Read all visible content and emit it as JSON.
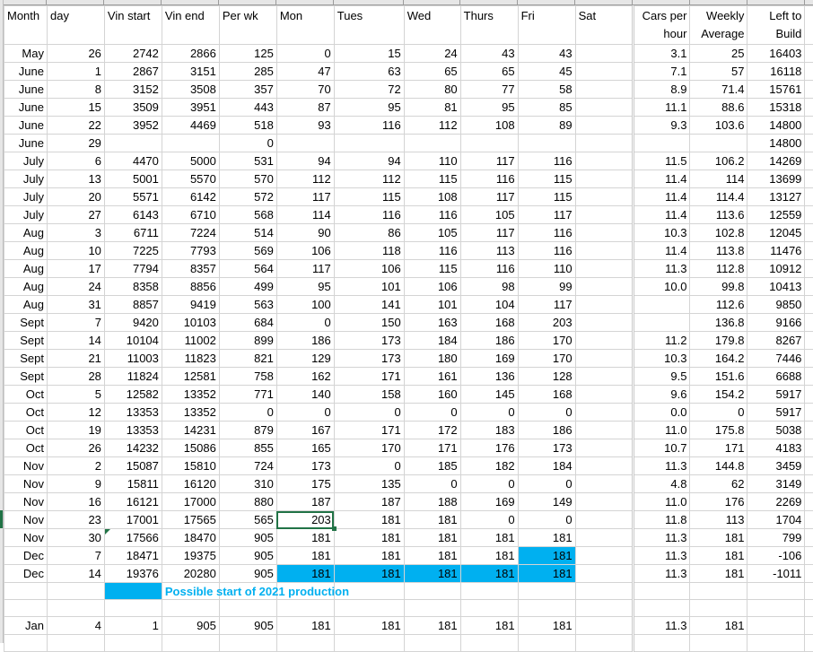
{
  "headers": [
    "Month",
    "day",
    "Vin start",
    "Vin end",
    "Per wk",
    "Mon",
    "Tues",
    "Wed",
    "Thurs",
    "Fri",
    "Sat",
    "Cars per hour",
    "Weekly Average",
    "Left to Build"
  ],
  "rows": [
    [
      "May",
      "26",
      "2742",
      "2866",
      "125",
      "0",
      "15",
      "24",
      "43",
      "43",
      "",
      "3.1",
      "25",
      "16403"
    ],
    [
      "June",
      "1",
      "2867",
      "3151",
      "285",
      "47",
      "63",
      "65",
      "65",
      "45",
      "",
      "7.1",
      "57",
      "16118"
    ],
    [
      "June",
      "8",
      "3152",
      "3508",
      "357",
      "70",
      "72",
      "80",
      "77",
      "58",
      "",
      "8.9",
      "71.4",
      "15761"
    ],
    [
      "June",
      "15",
      "3509",
      "3951",
      "443",
      "87",
      "95",
      "81",
      "95",
      "85",
      "",
      "11.1",
      "88.6",
      "15318"
    ],
    [
      "June",
      "22",
      "3952",
      "4469",
      "518",
      "93",
      "116",
      "112",
      "108",
      "89",
      "",
      "9.3",
      "103.6",
      "14800"
    ],
    [
      "June",
      "29",
      "",
      "",
      "0",
      "",
      "",
      "",
      "",
      "",
      "",
      "",
      "",
      "14800"
    ],
    [
      "July",
      "6",
      "4470",
      "5000",
      "531",
      "94",
      "94",
      "110",
      "117",
      "116",
      "",
      "11.5",
      "106.2",
      "14269"
    ],
    [
      "July",
      "13",
      "5001",
      "5570",
      "570",
      "112",
      "112",
      "115",
      "116",
      "115",
      "",
      "11.4",
      "114",
      "13699"
    ],
    [
      "July",
      "20",
      "5571",
      "6142",
      "572",
      "117",
      "115",
      "108",
      "117",
      "115",
      "",
      "11.4",
      "114.4",
      "13127"
    ],
    [
      "July",
      "27",
      "6143",
      "6710",
      "568",
      "114",
      "116",
      "116",
      "105",
      "117",
      "",
      "11.4",
      "113.6",
      "12559"
    ],
    [
      "Aug",
      "3",
      "6711",
      "7224",
      "514",
      "90",
      "86",
      "105",
      "117",
      "116",
      "",
      "10.3",
      "102.8",
      "12045"
    ],
    [
      "Aug",
      "10",
      "7225",
      "7793",
      "569",
      "106",
      "118",
      "116",
      "113",
      "116",
      "",
      "11.4",
      "113.8",
      "11476"
    ],
    [
      "Aug",
      "17",
      "7794",
      "8357",
      "564",
      "117",
      "106",
      "115",
      "116",
      "110",
      "",
      "11.3",
      "112.8",
      "10912"
    ],
    [
      "Aug",
      "24",
      "8358",
      "8856",
      "499",
      "95",
      "101",
      "106",
      "98",
      "99",
      "",
      "10.0",
      "99.8",
      "10413"
    ],
    [
      "Aug",
      "31",
      "8857",
      "9419",
      "563",
      "100",
      "141",
      "101",
      "104",
      "117",
      "",
      "",
      "112.6",
      "9850"
    ],
    [
      "Sept",
      "7",
      "9420",
      "10103",
      "684",
      "0",
      "150",
      "163",
      "168",
      "203",
      "",
      "",
      "136.8",
      "9166"
    ],
    [
      "Sept",
      "14",
      "10104",
      "11002",
      "899",
      "186",
      "173",
      "184",
      "186",
      "170",
      "",
      "11.2",
      "179.8",
      "8267"
    ],
    [
      "Sept",
      "21",
      "11003",
      "11823",
      "821",
      "129",
      "173",
      "180",
      "169",
      "170",
      "",
      "10.3",
      "164.2",
      "7446"
    ],
    [
      "Sept",
      "28",
      "11824",
      "12581",
      "758",
      "162",
      "171",
      "161",
      "136",
      "128",
      "",
      "9.5",
      "151.6",
      "6688"
    ],
    [
      "Oct",
      "5",
      "12582",
      "13352",
      "771",
      "140",
      "158",
      "160",
      "145",
      "168",
      "",
      "9.6",
      "154.2",
      "5917"
    ],
    [
      "Oct",
      "12",
      "13353",
      "13352",
      "0",
      "0",
      "0",
      "0",
      "0",
      "0",
      "",
      "0.0",
      "0",
      "5917"
    ],
    [
      "Oct",
      "19",
      "13353",
      "14231",
      "879",
      "167",
      "171",
      "172",
      "183",
      "186",
      "",
      "11.0",
      "175.8",
      "5038"
    ],
    [
      "Oct",
      "26",
      "14232",
      "15086",
      "855",
      "165",
      "170",
      "171",
      "176",
      "173",
      "",
      "10.7",
      "171",
      "4183"
    ],
    [
      "Nov",
      "2",
      "15087",
      "15810",
      "724",
      "173",
      "0",
      "185",
      "182",
      "184",
      "",
      "11.3",
      "144.8",
      "3459"
    ],
    [
      "Nov",
      "9",
      "15811",
      "16120",
      "310",
      "175",
      "135",
      "0",
      "0",
      "0",
      "",
      "4.8",
      "62",
      "3149"
    ],
    [
      "Nov",
      "16",
      "16121",
      "17000",
      "880",
      "187",
      "187",
      "188",
      "169",
      "149",
      "",
      "11.0",
      "176",
      "2269"
    ],
    [
      "Nov",
      "23",
      "17001",
      "17565",
      "565",
      "203",
      "181",
      "181",
      "0",
      "0",
      "",
      "11.8",
      "113",
      "1704"
    ],
    [
      "Nov",
      "30",
      "17566",
      "18470",
      "905",
      "181",
      "181",
      "181",
      "181",
      "181",
      "",
      "11.3",
      "181",
      "799"
    ],
    [
      "Dec",
      "7",
      "18471",
      "19375",
      "905",
      "181",
      "181",
      "181",
      "181",
      "181",
      "",
      "11.3",
      "181",
      "-106"
    ],
    [
      "Dec",
      "14",
      "19376",
      "20280",
      "905",
      "181",
      "181",
      "181",
      "181",
      "181",
      "",
      "11.3",
      "181",
      "-1011"
    ]
  ],
  "note": "Possible start of 2021 production",
  "jan_row": [
    "Jan",
    "4",
    "1",
    "905",
    "905",
    "181",
    "181",
    "181",
    "181",
    "181",
    "",
    "11.3",
    "181",
    ""
  ],
  "colors": {
    "highlight": "#00B0F0",
    "selection": "#217346",
    "gridline": "#d4d4d4"
  }
}
